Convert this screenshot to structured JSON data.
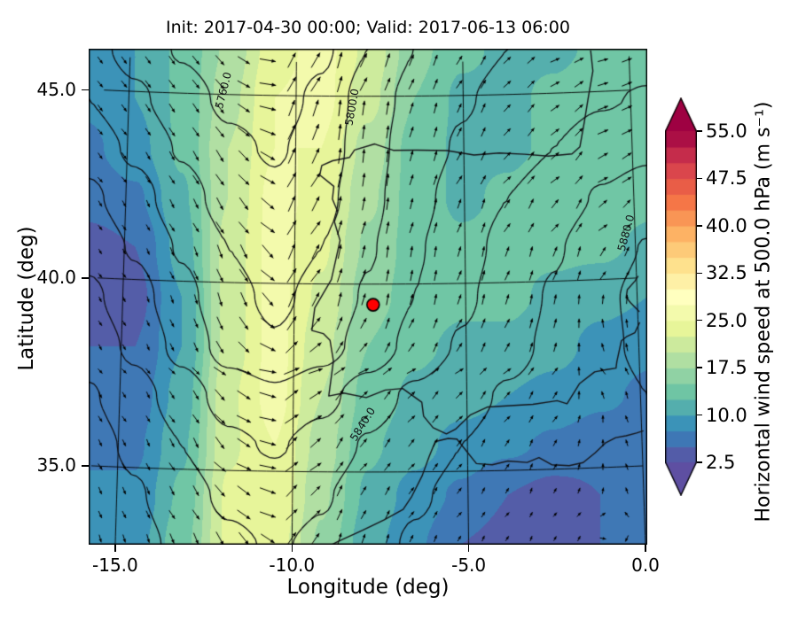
{
  "title": "Init: 2017-04-30 00:00; Valid: 2017-06-13 06:00",
  "axes": {
    "xlabel": "Longitude (deg)",
    "ylabel": "Latitude (deg)",
    "xticks": [
      {
        "value": -15,
        "label": "-15.0"
      },
      {
        "value": -10,
        "label": "-10.0"
      },
      {
        "value": -5,
        "label": "-5.0"
      },
      {
        "value": 0,
        "label": "0.0"
      }
    ],
    "yticks": [
      {
        "value": 45,
        "label": "45.0"
      },
      {
        "value": 40,
        "label": "40.0"
      },
      {
        "value": 35,
        "label": "35.0"
      }
    ]
  },
  "colorbar": {
    "label": "Horizontal wind speed at 500.0 hPa (m s⁻¹)",
    "vmin": 2.5,
    "vmax": 55.0,
    "bin_size": 2.5,
    "extend": "both",
    "ticks": [
      {
        "value": 55.0,
        "label": "55.0"
      },
      {
        "value": 47.5,
        "label": "47.5"
      },
      {
        "value": 40.0,
        "label": "40.0"
      },
      {
        "value": 32.5,
        "label": "32.5"
      },
      {
        "value": 25.0,
        "label": "25.0"
      },
      {
        "value": 17.5,
        "label": "17.5"
      },
      {
        "value": 10.0,
        "label": "10.0"
      },
      {
        "value": 2.5,
        "label": "2.5"
      }
    ],
    "colors_low_to_high": [
      "#5e4fa2",
      "#3288bd",
      "#66c2a5",
      "#abdda4",
      "#e6f598",
      "#ffffbf",
      "#fee08b",
      "#fdae61",
      "#f46d43",
      "#d53e4f",
      "#9e0142"
    ]
  },
  "chart_data": {
    "type": "heatmap",
    "field_name": "Horizontal wind speed at 500.0 hPa",
    "units": "m s⁻¹",
    "title": "Init: 2017-04-30 00:00; Valid: 2017-06-13 06:00",
    "xlabel": "Longitude (deg)",
    "ylabel": "Latitude (deg)",
    "lon_range": [
      -15.75,
      0.05
    ],
    "lat_range": [
      32.9,
      46.1
    ],
    "grid_lons": [
      -15.75,
      -14.43,
      -13.12,
      -11.8,
      -10.48,
      -9.17,
      -7.85,
      -6.53,
      -5.22,
      -3.9,
      -2.58,
      -1.27,
      0.05
    ],
    "grid_lats": [
      46.1,
      44.78,
      43.46,
      42.14,
      40.82,
      39.5,
      38.18,
      36.86,
      35.54,
      34.22,
      32.9
    ],
    "wind_speed_ms": [
      [
        9,
        10,
        13,
        18,
        24,
        26,
        22,
        16,
        13,
        12,
        12,
        13,
        13
      ],
      [
        8,
        10,
        13,
        19,
        25,
        26,
        21,
        15,
        12,
        12,
        13,
        14,
        14
      ],
      [
        7,
        9,
        13,
        20,
        25,
        25,
        19,
        14,
        12,
        12,
        13,
        15,
        14
      ],
      [
        6,
        7,
        12,
        20,
        26,
        24,
        18,
        14,
        12,
        13,
        14,
        14,
        13
      ],
      [
        4,
        5,
        11,
        21,
        26,
        23,
        17,
        14,
        13,
        13,
        13,
        13,
        12
      ],
      [
        4,
        4,
        10,
        21,
        26,
        22,
        16,
        14,
        13,
        13,
        12,
        11,
        10
      ],
      [
        5,
        5,
        10,
        21,
        26,
        21,
        15,
        13,
        12,
        12,
        11,
        9,
        8
      ],
      [
        6,
        6,
        11,
        22,
        26,
        20,
        14,
        12,
        11,
        10,
        9,
        8,
        7
      ],
      [
        7,
        7,
        12,
        22,
        25,
        19,
        13,
        11,
        9,
        8,
        7,
        6,
        6
      ],
      [
        8,
        8,
        13,
        23,
        25,
        18,
        12,
        9,
        7,
        5,
        4,
        5,
        6
      ],
      [
        8,
        9,
        14,
        23,
        24,
        17,
        11,
        8,
        5,
        4,
        3,
        5,
        7
      ]
    ],
    "geopotential_height_m": [
      [
        5788,
        5772,
        5758,
        5748,
        5744,
        5756,
        5780,
        5800,
        5812,
        5820,
        5824,
        5827,
        5830
      ],
      [
        5800,
        5784,
        5768,
        5756,
        5752,
        5764,
        5790,
        5806,
        5818,
        5826,
        5832,
        5838,
        5842
      ],
      [
        5812,
        5796,
        5778,
        5764,
        5758,
        5768,
        5792,
        5810,
        5822,
        5832,
        5840,
        5850,
        5856
      ],
      [
        5824,
        5808,
        5788,
        5772,
        5764,
        5774,
        5794,
        5814,
        5828,
        5840,
        5850,
        5862,
        5870
      ],
      [
        5834,
        5818,
        5798,
        5780,
        5770,
        5780,
        5798,
        5818,
        5832,
        5846,
        5858,
        5872,
        5881
      ],
      [
        5844,
        5828,
        5806,
        5786,
        5776,
        5786,
        5802,
        5820,
        5836,
        5850,
        5862,
        5877,
        5885
      ],
      [
        5852,
        5836,
        5814,
        5792,
        5782,
        5792,
        5808,
        5826,
        5842,
        5854,
        5864,
        5876,
        5884
      ],
      [
        5862,
        5848,
        5830,
        5812,
        5804,
        5814,
        5830,
        5844,
        5854,
        5862,
        5868,
        5872,
        5880
      ],
      [
        5868,
        5856,
        5840,
        5824,
        5818,
        5828,
        5842,
        5852,
        5860,
        5866,
        5870,
        5872,
        5876
      ],
      [
        5874,
        5862,
        5848,
        5836,
        5830,
        5838,
        5850,
        5858,
        5864,
        5868,
        5871,
        5872,
        5874
      ],
      [
        5878,
        5867,
        5855,
        5844,
        5838,
        5844,
        5854,
        5862,
        5867,
        5870,
        5872,
        5873,
        5872
      ]
    ],
    "height_contour_levels": [
      5760,
      5780,
      5800,
      5820,
      5840,
      5860,
      5880
    ],
    "contour_labels": [
      {
        "text": "5760.0",
        "lon": -11.95,
        "lat": 45.0,
        "rot_deg": -76
      },
      {
        "text": "5800.0",
        "lon": -8.3,
        "lat": 44.55,
        "rot_deg": -80
      },
      {
        "text": "5840.0",
        "lon": -8.0,
        "lat": 36.1,
        "rot_deg": -58
      },
      {
        "text": "5880.0",
        "lon": -0.55,
        "lat": 41.2,
        "rot_deg": -75
      }
    ],
    "graticule": {
      "lat_lines": [
        35,
        40,
        45
      ],
      "lon_lines": [
        -15,
        -10,
        -5,
        0
      ]
    },
    "marker": {
      "lon": -7.7,
      "lat": 39.45,
      "fill": "#ff0000",
      "edge": "#000000"
    },
    "quiver": {
      "spacing_px": 27,
      "color": "#000000"
    },
    "coastlines": [
      [
        -1.15,
        46.1,
        -1.1,
        45.55,
        -1.25,
        44.9,
        -1.4,
        44.2,
        -1.55,
        43.55,
        -1.79,
        43.37,
        -2.5,
        43.33,
        -3.2,
        43.4,
        -3.95,
        43.45,
        -4.7,
        43.41,
        -5.5,
        43.54,
        -6.4,
        43.56,
        -7.1,
        43.56,
        -7.65,
        43.73,
        -8.25,
        43.57,
        -8.4,
        43.37,
        -8.9,
        43.28,
        -9.22,
        43.15,
        -9.28,
        42.9,
        -8.86,
        42.6,
        -8.9,
        42.26,
        -8.74,
        41.92,
        -8.84,
        41.66,
        -8.67,
        41.16,
        -8.8,
        40.62,
        -8.92,
        40.12,
        -9.4,
        39.36,
        -9.48,
        38.76,
        -9.15,
        38.68,
        -8.95,
        38.5,
        -8.85,
        37.95,
        -8.98,
        37.02,
        -8.55,
        37.1,
        -7.9,
        36.98,
        -7.35,
        37.18,
        -6.85,
        37.22,
        -6.3,
        36.85,
        -6.25,
        36.48,
        -5.98,
        36.17,
        -5.6,
        36.0,
        -5.34,
        36.12,
        -4.9,
        36.5,
        -4.4,
        36.7,
        -3.75,
        36.72,
        -3.1,
        36.74,
        -2.4,
        36.82,
        -2.12,
        36.73,
        -1.75,
        37.25,
        -1.3,
        37.55,
        -0.95,
        37.6,
        -0.68,
        37.63,
        -0.65,
        37.8,
        -0.5,
        38.35,
        -0.35,
        38.45,
        -0.1,
        38.55,
        0.05,
        38.82
      ],
      [
        0.05,
        39.1,
        -0.2,
        39.35,
        -0.32,
        39.5,
        -0.28,
        39.7,
        -0.05,
        39.92,
        0.05,
        40.05
      ],
      [
        -9.2,
        32.9,
        -8.7,
        33.15,
        -8.0,
        33.45,
        -7.4,
        33.72,
        -6.85,
        34.0,
        -6.6,
        34.35,
        -6.3,
        34.9,
        -6.1,
        35.4,
        -5.92,
        35.8,
        -5.55,
        35.88,
        -5.3,
        35.86,
        -4.75,
        35.2,
        -4.3,
        35.16,
        -3.85,
        35.25,
        -3.3,
        35.2,
        -2.96,
        35.32,
        -2.6,
        35.12,
        -2.1,
        35.08,
        -1.7,
        35.15,
        -1.35,
        35.4,
        -1.05,
        35.65,
        -0.75,
        35.78,
        -0.45,
        35.82,
        -0.15,
        35.88,
        0.05,
        35.93
      ]
    ]
  }
}
